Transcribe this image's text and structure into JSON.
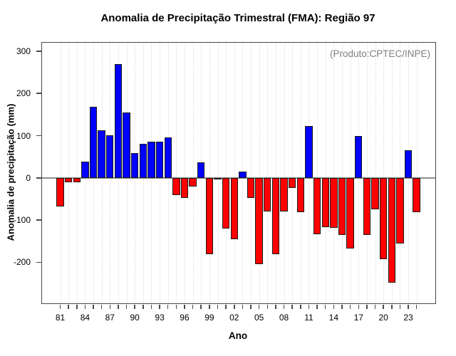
{
  "title": "Anomalia de Precipitação Trimestral (FMA): Região 97",
  "annotation": "(Produto:CPTEC/INPE)",
  "chart_data": {
    "type": "bar",
    "title": "Anomalia de Precipitação Trimestral (FMA): Região 97",
    "xlabel": "Ano",
    "ylabel": "Anomalia de precipitação (mm)",
    "annotation": "(Produto:CPTEC/INPE)",
    "categories": [
      "81",
      "82",
      "83",
      "84",
      "85",
      "86",
      "87",
      "88",
      "89",
      "90",
      "91",
      "92",
      "93",
      "94",
      "95",
      "96",
      "97",
      "98",
      "99",
      "00",
      "01",
      "02",
      "03",
      "04",
      "05",
      "06",
      "07",
      "08",
      "09",
      "10",
      "11",
      "12",
      "13",
      "14",
      "15",
      "16",
      "17",
      "18",
      "19",
      "20",
      "21",
      "22",
      "23",
      "24"
    ],
    "values": [
      -67,
      -10,
      -11,
      38,
      169,
      113,
      101,
      270,
      155,
      58,
      81,
      85,
      86,
      96,
      -41,
      -48,
      -20,
      37,
      -180,
      -2,
      -120,
      -145,
      15,
      -48,
      -205,
      -79,
      -180,
      -79,
      -24,
      -81,
      123,
      -134,
      -117,
      -118,
      -135,
      -167,
      100,
      -136,
      -74,
      -192,
      -248,
      -156,
      66,
      -82
    ],
    "x_tick_labels": [
      "81",
      "84",
      "87",
      "90",
      "93",
      "96",
      "99",
      "02",
      "05",
      "08",
      "11",
      "14",
      "17",
      "20",
      "23"
    ],
    "x_label_step": 3,
    "y_ticks": [
      300,
      200,
      100,
      0,
      -100,
      -200
    ],
    "ylim": [
      -297,
      320
    ],
    "grid": "vertical-dotted",
    "legend": "none",
    "positive_color": "#0000ff",
    "negative_color": "#ff0000",
    "zero_line_color": "#8c8c8c",
    "annotation_color": "#808080"
  }
}
